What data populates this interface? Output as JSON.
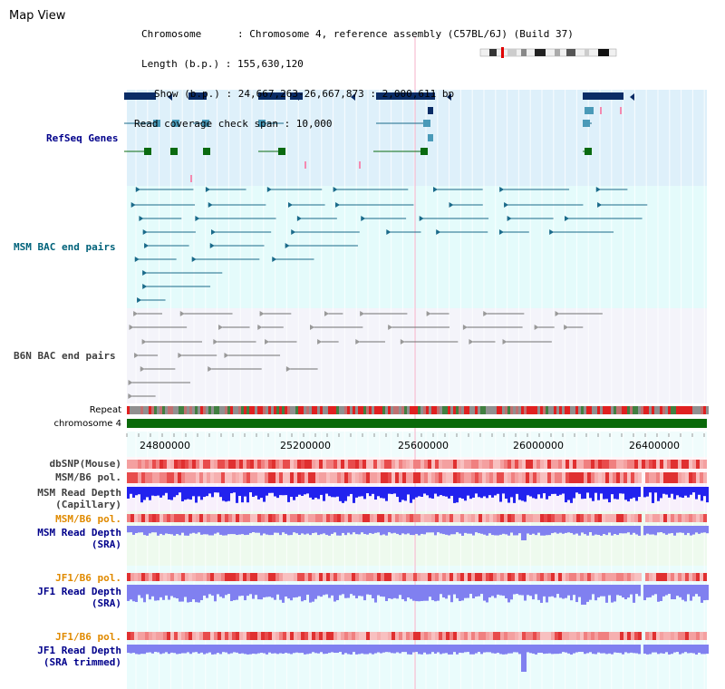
{
  "title": "Map View",
  "header": {
    "chromosome": "Chromosome      : Chromosome 4, reference assembly (C57BL/6J) (Build 37)",
    "length": "Length (b.p.) : 155,630,120",
    "show": "Show (b.p.) : 24,667,263-26,667,873 : 2,000,611 bp",
    "span": "Read coverage check span : 10,000"
  },
  "tracks": {
    "refseq": "RefSeq Genes",
    "msm_bac": "MSM BAC end pairs",
    "b6n_bac": "B6N BAC end pairs",
    "repeat": "Repeat",
    "chromosome": "chromosome 4",
    "dbsnp": "dbSNP(Mouse)",
    "msm_b6_pol": "MSM/B6 pol.",
    "msm_depth_cap_1": "MSM Read Depth",
    "msm_depth_cap_2": "(Capillary)",
    "msm_b6_pol2": "MSM/B6 pol.",
    "msm_depth_sra_1": "MSM Read Depth",
    "msm_depth_sra_2": "(SRA)",
    "jf1_b6_pol": "JF1/B6 pol.",
    "jf1_depth_sra_1": "JF1 Read Depth",
    "jf1_depth_sra_2": "(SRA)",
    "jf1_b6_pol2": "JF1/B6 pol.",
    "jf1_depth_trim_1": "JF1 Read Depth",
    "jf1_depth_trim_2": "(SRA trimmed)"
  },
  "axis": {
    "ticks": [
      "24800000",
      "25200000",
      "25600000",
      "26000000",
      "26400000"
    ]
  },
  "colors": {
    "refseq_bg": "#def0fa",
    "msm_bg": "#e4fbfb",
    "b6n_bg": "#f4f4fa",
    "navy": "#0a2c66",
    "teal": "#1a6a8a",
    "green": "#0a6a10",
    "gray": "#707070",
    "chrom": "#0a6a0a",
    "blue_depth": "#2222ee",
    "lav_depth": "#8080f0",
    "label_navy": "#00008b",
    "label_teal": "#00627a",
    "label_gray": "#404040",
    "label_orange": "#e08a00"
  }
}
